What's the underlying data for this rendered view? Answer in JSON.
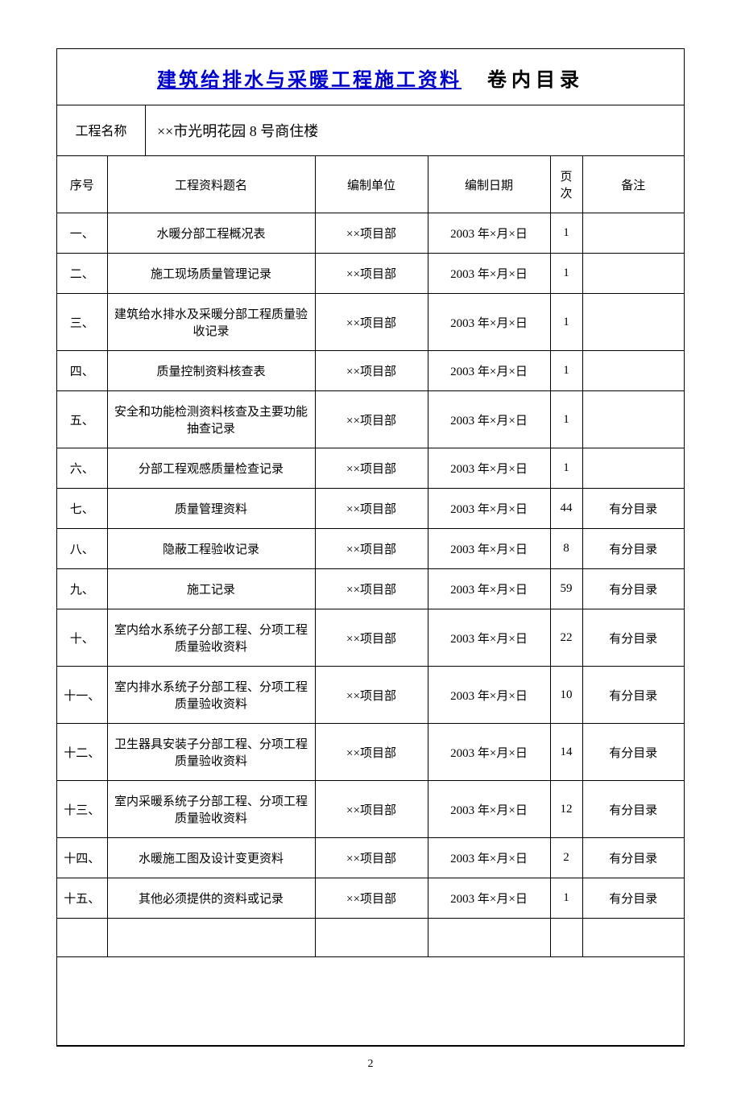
{
  "title": {
    "link_text": "建筑给排水与采暖工程施工资料",
    "suffix": "卷内目录"
  },
  "project": {
    "label": "工程名称",
    "value": "××市光明花园 8 号商住楼"
  },
  "columns": {
    "seq": "序号",
    "name": "工程资料题名",
    "unit": "编制单位",
    "date": "编制日期",
    "page": "页次",
    "remark": "备注"
  },
  "rows": [
    {
      "seq": "一、",
      "name": "水暖分部工程概况表",
      "unit": "××项目部",
      "date": "2003 年×月×日",
      "page": "1",
      "remark": ""
    },
    {
      "seq": "二、",
      "name": "施工现场质量管理记录",
      "unit": "××项目部",
      "date": "2003 年×月×日",
      "page": "1",
      "remark": ""
    },
    {
      "seq": "三、",
      "name": "建筑给水排水及采暖分部工程质量验收记录",
      "unit": "××项目部",
      "date": "2003 年×月×日",
      "page": "1",
      "remark": ""
    },
    {
      "seq": "四、",
      "name": "质量控制资料核查表",
      "unit": "××项目部",
      "date": "2003 年×月×日",
      "page": "1",
      "remark": ""
    },
    {
      "seq": "五、",
      "name": "安全和功能检测资料核查及主要功能抽查记录",
      "unit": "××项目部",
      "date": "2003 年×月×日",
      "page": "1",
      "remark": ""
    },
    {
      "seq": "六、",
      "name": "分部工程观感质量检查记录",
      "unit": "××项目部",
      "date": "2003 年×月×日",
      "page": "1",
      "remark": ""
    },
    {
      "seq": "七、",
      "name": "质量管理资料",
      "unit": "××项目部",
      "date": "2003 年×月×日",
      "page": "44",
      "remark": "有分目录"
    },
    {
      "seq": "八、",
      "name": "隐蔽工程验收记录",
      "unit": "××项目部",
      "date": "2003 年×月×日",
      "page": "8",
      "remark": "有分目录"
    },
    {
      "seq": "九、",
      "name": "施工记录",
      "unit": "××项目部",
      "date": "2003 年×月×日",
      "page": "59",
      "remark": "有分目录"
    },
    {
      "seq": "十、",
      "name": "室内给水系统子分部工程、分项工程质量验收资料",
      "unit": "××项目部",
      "date": "2003 年×月×日",
      "page": "22",
      "remark": "有分目录"
    },
    {
      "seq": "十一、",
      "name": "室内排水系统子分部工程、分项工程质量验收资料",
      "unit": "××项目部",
      "date": "2003 年×月×日",
      "page": "10",
      "remark": "有分目录"
    },
    {
      "seq": "十二、",
      "name": "卫生器具安装子分部工程、分项工程质量验收资料",
      "unit": "××项目部",
      "date": "2003 年×月×日",
      "page": "14",
      "remark": "有分目录"
    },
    {
      "seq": "十三、",
      "name": "室内采暖系统子分部工程、分项工程质量验收资料",
      "unit": "××项目部",
      "date": "2003 年×月×日",
      "page": "12",
      "remark": "有分目录"
    },
    {
      "seq": "十四、",
      "name": "水暖施工图及设计变更资料",
      "unit": "××项目部",
      "date": "2003 年×月×日",
      "page": "2",
      "remark": "有分目录"
    },
    {
      "seq": "十五、",
      "name": "其他必须提供的资料或记录",
      "unit": "××项目部",
      "date": "2003 年×月×日",
      "page": "1",
      "remark": "有分目录"
    }
  ],
  "page_number": "2",
  "styling": {
    "link_color": "#0000cc",
    "text_color": "#000000",
    "background_color": "#ffffff",
    "border_color": "#000000",
    "title_fontsize": 24,
    "body_fontsize": 15,
    "font_family": "SimSun"
  }
}
